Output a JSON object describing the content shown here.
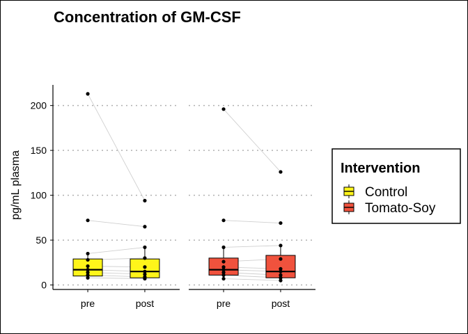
{
  "chart_data": {
    "type": "boxplot",
    "title": "Concentration of GM-CSF",
    "ylabel": "pg/mL plasma",
    "xlabel": "",
    "ylim": [
      -5,
      223
    ],
    "yticks": [
      0,
      50,
      100,
      150,
      200
    ],
    "grid": "horizontal dotted at y ticks",
    "categories": [
      "pre",
      "post"
    ],
    "legend": {
      "title": "Intervention",
      "position": "right",
      "entries": [
        {
          "label": "Control",
          "color": "#FFF51A"
        },
        {
          "label": "Tomato-Soy",
          "color": "#F0523D"
        }
      ]
    },
    "panels": [
      {
        "group": "Control",
        "color": "#FFF51A",
        "boxes": [
          {
            "x": "pre",
            "q1": 10,
            "median": 17,
            "q3": 29,
            "whisker_low": 7,
            "whisker_high": 35
          },
          {
            "x": "post",
            "q1": 8,
            "median": 15,
            "q3": 29,
            "whisker_low": 6,
            "whisker_high": 42
          }
        ],
        "points": [
          {
            "x": "pre",
            "values": [
              213,
              72,
              35,
              28,
              21,
              17,
              14,
              11,
              8
            ]
          },
          {
            "x": "post",
            "values": [
              94,
              65,
              42,
              30,
              20,
              15,
              12,
              9,
              7
            ]
          }
        ],
        "pairs": [
          [
            213,
            94
          ],
          [
            72,
            65
          ],
          [
            35,
            42
          ],
          [
            28,
            30
          ],
          [
            21,
            20
          ],
          [
            17,
            15
          ],
          [
            14,
            12
          ],
          [
            11,
            9
          ],
          [
            8,
            7
          ]
        ]
      },
      {
        "group": "Tomato-Soy",
        "color": "#F0523D",
        "boxes": [
          {
            "x": "pre",
            "q1": 11,
            "median": 17,
            "q3": 30,
            "whisker_low": 6,
            "whisker_high": 42
          },
          {
            "x": "post",
            "q1": 8,
            "median": 15,
            "q3": 33,
            "whisker_low": 5,
            "whisker_high": 44
          }
        ],
        "points": [
          {
            "x": "pre",
            "values": [
              196,
              72,
              42,
              26,
              20,
              17,
              14,
              11,
              7
            ]
          },
          {
            "x": "post",
            "values": [
              126,
              69,
              44,
              29,
              18,
              15,
              11,
              8,
              5
            ]
          }
        ],
        "pairs": [
          [
            196,
            126
          ],
          [
            72,
            69
          ],
          [
            42,
            44
          ],
          [
            26,
            29
          ],
          [
            20,
            18
          ],
          [
            17,
            15
          ],
          [
            14,
            11
          ],
          [
            11,
            8
          ],
          [
            7,
            5
          ]
        ]
      }
    ]
  }
}
